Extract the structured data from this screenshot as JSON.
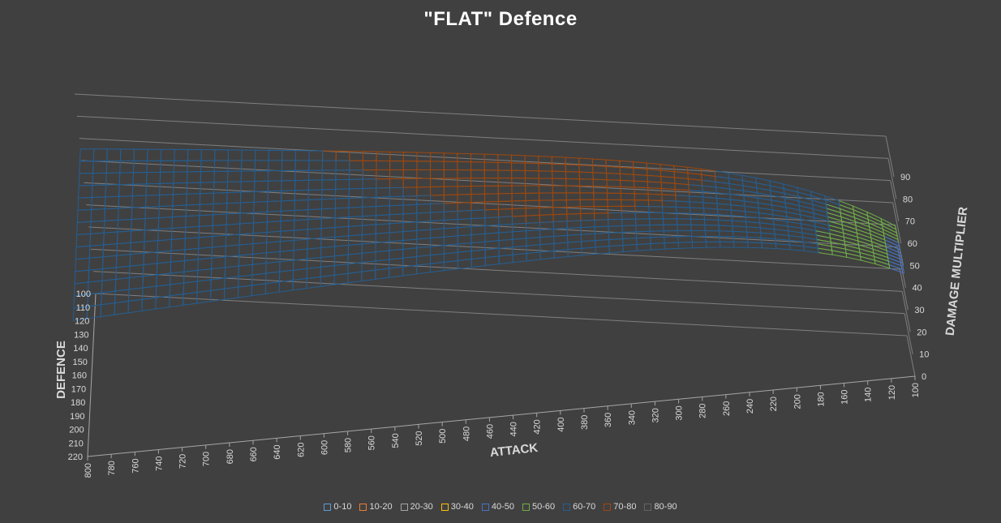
{
  "chart_data": {
    "type": "surface-3d-wireframe",
    "title": "\"FLAT\" Defence",
    "x_axis": {
      "label": "ATTACK",
      "ticks": [
        800,
        780,
        760,
        740,
        720,
        700,
        680,
        660,
        640,
        620,
        600,
        580,
        560,
        540,
        520,
        500,
        480,
        460,
        440,
        420,
        400,
        380,
        360,
        340,
        320,
        300,
        280,
        260,
        240,
        220,
        200,
        180,
        160,
        140,
        120,
        100
      ],
      "range": [
        100,
        800
      ]
    },
    "y_axis": {
      "label": "DEFENCE",
      "ticks": [
        100,
        110,
        120,
        130,
        140,
        150,
        160,
        170,
        180,
        190,
        200,
        210,
        220
      ],
      "range": [
        100,
        220
      ]
    },
    "z_axis": {
      "label": "DAMAGE MULTIPLIER",
      "ticks": [
        0,
        10,
        20,
        30,
        40,
        50,
        60,
        70,
        80,
        90
      ],
      "range": [
        0,
        90
      ]
    },
    "surface_description": "Damage multiplier rises with attack; surface is approximately flat across defence",
    "legend_position": "bottom",
    "bands": [
      {
        "name": "0-10",
        "color": "#5b9bd5"
      },
      {
        "name": "10-20",
        "color": "#ed7d31"
      },
      {
        "name": "20-30",
        "color": "#a5a5a5"
      },
      {
        "name": "30-40",
        "color": "#ffc000"
      },
      {
        "name": "40-50",
        "color": "#4472c4"
      },
      {
        "name": "50-60",
        "color": "#70ad47"
      },
      {
        "name": "60-70",
        "color": "#255e91"
      },
      {
        "name": "70-80",
        "color": "#9e480e"
      },
      {
        "name": "80-90",
        "color": "#636363"
      }
    ],
    "grid": true
  }
}
